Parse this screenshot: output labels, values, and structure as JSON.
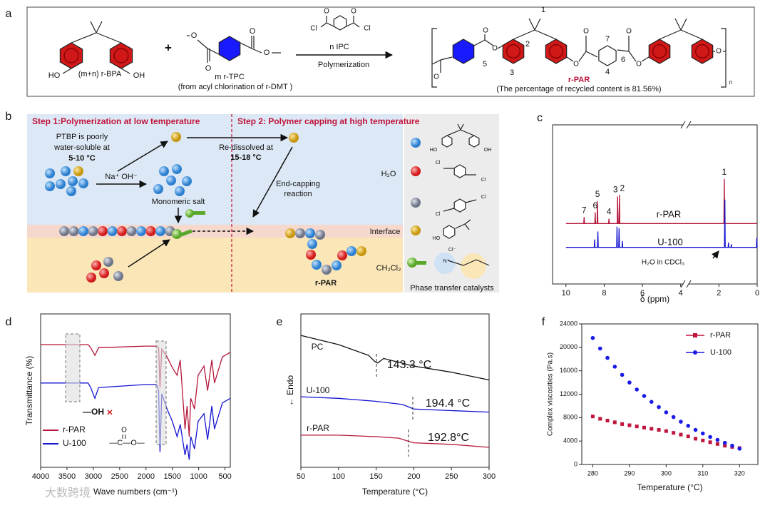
{
  "figure": {
    "panel_labels": [
      "a",
      "b",
      "c",
      "d",
      "e",
      "f"
    ],
    "watermark": "大数跨境",
    "scheme_a": {
      "bpa_atoms": [
        "HO",
        "OH"
      ],
      "bpa_label": "(m+n)  r-BPA",
      "plus": "+",
      "tpc_atoms": [
        "O",
        "O",
        "O",
        "O"
      ],
      "tpc_label": "m  r-TPC",
      "tpc_note": "(from acyl chlorination of r-DMT )",
      "ipc_atoms": [
        "Cl",
        "O",
        "O",
        "Cl"
      ],
      "ipc_label": "n  IPC",
      "arrow_label": "Polymerization",
      "product_atoms": [
        "O",
        "O",
        "O",
        "O",
        "O",
        "O",
        "O",
        "O"
      ],
      "product_numbers": [
        "1",
        "2",
        "3",
        "4",
        "5",
        "6",
        "7"
      ],
      "repeat": "n",
      "product_name": "r-PAR",
      "product_note": "(The percentage of recycled content is 81.56%)"
    },
    "scheme_b": {
      "step1": "Step 1:Polymerization at low temperature",
      "step2": "Step 2: Polymer capping at high temperature",
      "ptbp_lines": [
        "PTBP is poorly",
        "water-soluble  at"
      ],
      "ptbp_temp": "5-10 °C",
      "redissolved": "Re-dissolved at",
      "redissolved_temp": "15-18 °C",
      "base": "Na⁺  OH⁻",
      "salt": "Monomeric salt",
      "end_capping": [
        "End-capping",
        "reaction"
      ],
      "phases": [
        "H₂O",
        "Interface",
        "CH₂Cl₂"
      ],
      "product": "r-PAR",
      "legend_title": "Phase transfer catalysts",
      "legend_atoms": [
        "HO",
        "OH",
        "Cl",
        "Cl",
        "Cl",
        "Cl",
        "HO",
        "Cl⁻",
        "N⁺"
      ]
    }
  },
  "chart_data": [
    {
      "type": "line",
      "xlabel": "δ (ppm)",
      "xlim": [
        10.7,
        0
      ],
      "xticks": [
        10,
        8,
        6,
        4,
        2,
        0
      ],
      "ylim": [
        0,
        100
      ],
      "series": [
        {
          "name": "r-PAR",
          "color": "#b5173a",
          "x": [
            10,
            9.07,
            9.05,
            9.03,
            8.49,
            8.47,
            8.45,
            8.37,
            8.35,
            8.33,
            7.77,
            7.75,
            7.73,
            7.32,
            7.3,
            7.27,
            7.22,
            7.2,
            7.18,
            1.74,
            1.72,
            1.7,
            0
          ],
          "values": [
            38,
            38,
            42,
            38,
            38,
            45,
            38,
            38,
            52,
            38,
            38,
            41,
            38,
            38,
            55,
            38,
            38,
            56,
            38,
            38,
            66,
            38,
            38
          ]
        },
        {
          "name": "U-100",
          "color": "#1414d2",
          "x": [
            10,
            8.52,
            8.5,
            8.48,
            8.35,
            8.33,
            8.31,
            7.35,
            7.33,
            7.31,
            7.24,
            7.22,
            7.2,
            7.07,
            7.05,
            7.03,
            1.71,
            1.69,
            1.67,
            1.52,
            1.5,
            1.48,
            1.37,
            1.35,
            1.33,
            0.04,
            0.02,
            0
          ],
          "values": [
            23,
            23,
            28,
            23,
            23,
            33,
            23,
            23,
            36,
            23,
            23,
            35,
            23,
            23,
            27,
            23,
            23,
            53,
            23,
            23,
            26,
            23,
            23,
            25,
            23,
            23,
            29,
            23
          ]
        }
      ],
      "peak_labels": [
        "7",
        "6",
        "5",
        "4",
        "3",
        "2",
        "1"
      ],
      "annotation": "H₂O in CDCl₃"
    },
    {
      "type": "line",
      "xlabel": "Wave numbers (cm⁻¹)",
      "ylabel": "Transmittance (%)",
      "xlim": [
        4000,
        400
      ],
      "xticks": [
        4000,
        3500,
        3000,
        2500,
        2000,
        1500,
        1000,
        500
      ],
      "ylim": [
        0,
        100
      ],
      "x": [
        4000,
        3100,
        3050,
        2970,
        2900,
        2000,
        1800,
        1760,
        1735,
        1700,
        1600,
        1500,
        1410,
        1350,
        1260,
        1220,
        1180,
        1150,
        1080,
        1010,
        900,
        830,
        750,
        700,
        550,
        400
      ],
      "series": [
        {
          "name": "r-PAR",
          "color": "#b5173a",
          "values": [
            80,
            80,
            78,
            73,
            78,
            79,
            79,
            78,
            52,
            77,
            72,
            65,
            60,
            70,
            25,
            40,
            20,
            45,
            38,
            60,
            66,
            50,
            70,
            55,
            72,
            75
          ]
        },
        {
          "name": "U-100",
          "color": "#1414d2",
          "values": [
            55,
            55,
            52,
            45,
            52,
            54,
            54,
            50,
            10,
            48,
            38,
            30,
            20,
            28,
            8,
            15,
            5,
            20,
            12,
            30,
            35,
            18,
            40,
            25,
            42,
            45
          ]
        }
      ],
      "annotations": [
        "—OH",
        "×",
        "O",
        "—C—O—"
      ]
    },
    {
      "type": "line",
      "xlabel": "Temperature (°C)",
      "ylabel": "← Endo",
      "xlim": [
        50,
        300
      ],
      "xticks": [
        50,
        100,
        150,
        200,
        250,
        300
      ],
      "ylim": [
        0,
        100
      ],
      "series": [
        {
          "name": "PC",
          "color": "#111111",
          "x": [
            50,
            100,
            140,
            148,
            152,
            160,
            200,
            250,
            300
          ],
          "values": [
            86,
            80,
            73,
            69,
            68,
            71,
            66,
            62,
            57
          ]
        },
        {
          "name": "U-100",
          "color": "#1414d2",
          "x": [
            50,
            100,
            150,
            185,
            195,
            200,
            250,
            300
          ],
          "values": [
            46,
            45,
            43,
            41,
            39,
            38,
            37,
            36
          ]
        },
        {
          "name": "r-PAR",
          "color": "#b5173a",
          "x": [
            50,
            100,
            150,
            180,
            193,
            200,
            250,
            300
          ],
          "values": [
            21,
            21,
            20,
            19,
            17,
            16,
            15,
            13
          ]
        }
      ],
      "annotations": [
        "143.3 °C",
        "194.4 °C",
        "192.8°C"
      ]
    },
    {
      "type": "scatter",
      "xlabel": "Temperature (°C)",
      "ylabel": "Complex viscosities (Pa.s)",
      "xlim": [
        277,
        325
      ],
      "xticks": [
        280,
        290,
        300,
        310,
        320
      ],
      "ylim": [
        0,
        24000
      ],
      "yticks": [
        0,
        4000,
        8000,
        12000,
        16000,
        20000,
        24000
      ],
      "legend": "upper right",
      "x": [
        280,
        282,
        284,
        286,
        288,
        290,
        292,
        294,
        296,
        298,
        300,
        302,
        304,
        306,
        308,
        310,
        312,
        314,
        316,
        318,
        320
      ],
      "series": [
        {
          "name": "r-PAR",
          "color": "#c0143c",
          "marker": "square",
          "values": [
            8200,
            7800,
            7500,
            7200,
            6900,
            6700,
            6500,
            6300,
            6100,
            5900,
            5700,
            5400,
            5100,
            4800,
            4400,
            4100,
            3800,
            3500,
            3200,
            3000,
            2800
          ]
        },
        {
          "name": "U-100",
          "color": "#1a1ae6",
          "marker": "circle",
          "values": [
            21600,
            19800,
            18200,
            16700,
            15300,
            14000,
            12800,
            11700,
            10700,
            9800,
            8900,
            8100,
            7300,
            6600,
            5900,
            5300,
            4700,
            4200,
            3700,
            3200,
            2700
          ]
        }
      ]
    }
  ]
}
